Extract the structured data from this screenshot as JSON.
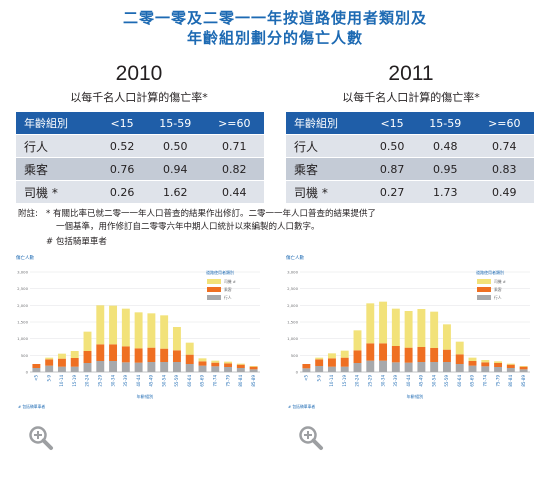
{
  "title_line1": "二零一零及二零一一年按道路使用者類別及",
  "title_line2": "年齡組別劃分的傷亡人數",
  "rate_caption": "以每千名人口計算的傷亡率*",
  "table_headers": [
    "年齡組別",
    "<15",
    "15-59",
    ">=60"
  ],
  "tables": [
    {
      "year": "2010",
      "rows": [
        {
          "label": "行人",
          "values": [
            "0.52",
            "0.50",
            "0.71"
          ]
        },
        {
          "label": "乘客",
          "values": [
            "0.76",
            "0.94",
            "0.82"
          ]
        },
        {
          "label": "司機 *",
          "values": [
            "0.26",
            "1.62",
            "0.44"
          ]
        }
      ]
    },
    {
      "year": "2011",
      "rows": [
        {
          "label": "行人",
          "values": [
            "0.50",
            "0.48",
            "0.74"
          ]
        },
        {
          "label": "乘客",
          "values": [
            "0.87",
            "0.95",
            "0.83"
          ]
        },
        {
          "label": "司機 *",
          "values": [
            "0.27",
            "1.73",
            "0.49"
          ]
        }
      ]
    }
  ],
  "notes": {
    "prefix": "附註:",
    "line1": "* 有關比率已就二零一一年人口普查的結果作出修訂。二零一一年人口普查的結果提供了",
    "line2": "一個基準，用作修訂自二零零六年中期人口統計以來編製的人口數字。",
    "line3": "# 包括騎單車者"
  },
  "colors": {
    "title": "#1d6ab3",
    "header_bg": "#1f5ea8",
    "driver": "#f2e27a",
    "passenger": "#ef6f22",
    "pedestrian": "#a7a9ac"
  },
  "chart_data": [
    {
      "type": "bar",
      "stacked": true,
      "ylabel": "傷亡人數",
      "xlabel": "年齡組別",
      "legend_title": "道路使用者類別",
      "legend_position": "top-right",
      "footnote": "# 包括騎單車者",
      "ylim": [
        0,
        3000
      ],
      "yticks": [
        "0",
        "500",
        "1,000",
        "1,500",
        "2,000",
        "2,500",
        "3,000"
      ],
      "categories": [
        "<5",
        "5-9",
        "10-14",
        "15-19",
        "20-24",
        "25-29",
        "30-34",
        "35-39",
        "40-44",
        "45-49",
        "50-54",
        "55-59",
        "60-64",
        "65-69",
        "70-74",
        "75-79",
        "80-84",
        "85-89"
      ],
      "series": [
        {
          "name": "行人",
          "color": "#a7a9ac",
          "values": [
            120,
            190,
            160,
            160,
            270,
            330,
            330,
            290,
            280,
            300,
            300,
            300,
            240,
            190,
            170,
            150,
            120,
            80
          ]
        },
        {
          "name": "乘客",
          "color": "#ef6f22",
          "values": [
            120,
            190,
            240,
            260,
            360,
            500,
            500,
            480,
            430,
            430,
            400,
            350,
            280,
            130,
            110,
            110,
            100,
            80
          ]
        },
        {
          "name": "司機 #",
          "color": "#f2e27a",
          "values": [
            0,
            50,
            150,
            210,
            580,
            1170,
            1160,
            1130,
            1080,
            1030,
            1000,
            700,
            360,
            90,
            60,
            50,
            30,
            20
          ]
        }
      ]
    },
    {
      "type": "bar",
      "stacked": true,
      "ylabel": "傷亡人數",
      "xlabel": "年齡組別",
      "legend_title": "道路使用者類別",
      "legend_position": "top-right",
      "footnote": "# 包括騎單車者",
      "ylim": [
        0,
        3000
      ],
      "yticks": [
        "0",
        "500",
        "1,000",
        "1,500",
        "2,000",
        "2,500",
        "3,000"
      ],
      "categories": [
        "<5",
        "5-9",
        "10-14",
        "15-19",
        "20-24",
        "25-29",
        "30-34",
        "35-39",
        "40-44",
        "45-49",
        "50-54",
        "55-59",
        "60-64",
        "65-69",
        "70-74",
        "75-79",
        "80-84",
        "85-89"
      ],
      "series": [
        {
          "name": "行人",
          "color": "#a7a9ac",
          "values": [
            110,
            180,
            160,
            160,
            270,
            340,
            340,
            290,
            280,
            300,
            300,
            300,
            240,
            190,
            170,
            150,
            120,
            80
          ]
        },
        {
          "name": "乘客",
          "color": "#ef6f22",
          "values": [
            130,
            200,
            250,
            270,
            380,
            520,
            520,
            490,
            450,
            450,
            420,
            370,
            290,
            140,
            120,
            120,
            100,
            80
          ]
        },
        {
          "name": "司機 #",
          "color": "#f2e27a",
          "values": [
            0,
            50,
            150,
            210,
            600,
            1200,
            1250,
            1120,
            1100,
            1140,
            1090,
            760,
            380,
            100,
            70,
            50,
            30,
            20
          ]
        }
      ]
    }
  ]
}
